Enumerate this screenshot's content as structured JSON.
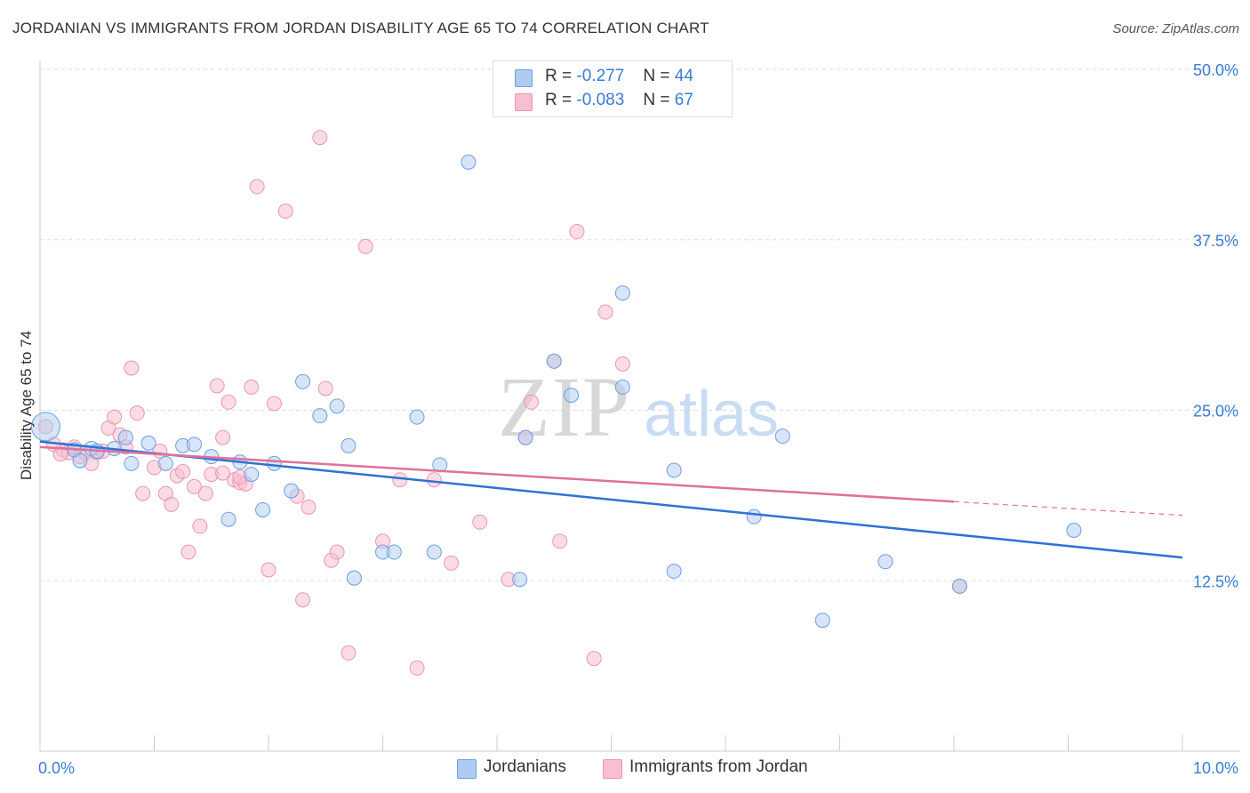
{
  "title": "JORDANIAN VS IMMIGRANTS FROM JORDAN DISABILITY AGE 65 TO 74 CORRELATION CHART",
  "source": "Source: ZipAtlas.com",
  "watermark": {
    "zip": "ZIP",
    "atlas": "atlas"
  },
  "legend": {
    "row1": {
      "r_label": "R =",
      "r_value": "-0.277",
      "n_label": "N =",
      "n_value": "44"
    },
    "row2": {
      "r_label": "R =",
      "r_value": "-0.083",
      "n_label": "N =",
      "n_value": "67"
    }
  },
  "bottom_legend": {
    "series1": "Jordanians",
    "series2": "Immigrants from Jordan"
  },
  "colors": {
    "blue_fill": "#aecbf2",
    "blue_stroke": "#6d9ee0",
    "blue_line": "#2f72d4",
    "pink_fill": "#f7bfd0",
    "pink_stroke": "#ec94b3",
    "pink_line": "#e0709a",
    "axis_text": "#3a7bd5",
    "grid": "#dddddd"
  },
  "chart_data": {
    "type": "scatter",
    "title": "JORDANIAN VS IMMIGRANTS FROM JORDAN DISABILITY AGE 65 TO 74 CORRELATION CHART",
    "xlabel": "",
    "ylabel": "Disability Age 65 to 74",
    "xlim": [
      0,
      10
    ],
    "ylim": [
      0,
      50
    ],
    "x_tick_labels": [
      "0.0%",
      "10.0%"
    ],
    "y_tick_labels": [
      "12.5%",
      "25.0%",
      "37.5%",
      "50.0%"
    ],
    "y_ticks": [
      12.5,
      25,
      37.5,
      50
    ],
    "grid": true,
    "legend_position": "top-center",
    "series": [
      {
        "name": "Jordanians",
        "R": -0.277,
        "N": 44,
        "trend": {
          "x": [
            0,
            10
          ],
          "y": [
            22.7,
            14.2
          ]
        },
        "points": [
          [
            0.05,
            23.8
          ],
          [
            0.3,
            22.1
          ],
          [
            0.35,
            21.3
          ],
          [
            0.45,
            22.2
          ],
          [
            0.5,
            22.0
          ],
          [
            0.65,
            22.2
          ],
          [
            0.75,
            23.0
          ],
          [
            0.8,
            21.1
          ],
          [
            0.95,
            22.6
          ],
          [
            1.1,
            21.1
          ],
          [
            1.25,
            22.4
          ],
          [
            1.35,
            22.5
          ],
          [
            1.5,
            21.6
          ],
          [
            1.65,
            17.0
          ],
          [
            1.75,
            21.2
          ],
          [
            1.85,
            20.3
          ],
          [
            1.95,
            17.7
          ],
          [
            2.05,
            21.1
          ],
          [
            2.2,
            19.1
          ],
          [
            2.3,
            27.1
          ],
          [
            2.45,
            24.6
          ],
          [
            2.6,
            25.3
          ],
          [
            2.7,
            22.4
          ],
          [
            2.75,
            12.7
          ],
          [
            3.0,
            14.6
          ],
          [
            3.1,
            14.6
          ],
          [
            3.3,
            24.5
          ],
          [
            3.45,
            14.6
          ],
          [
            3.5,
            21.0
          ],
          [
            3.75,
            43.2
          ],
          [
            4.2,
            12.6
          ],
          [
            4.25,
            23.0
          ],
          [
            4.5,
            28.6
          ],
          [
            4.65,
            26.1
          ],
          [
            5.1,
            33.6
          ],
          [
            5.1,
            26.7
          ],
          [
            5.55,
            20.6
          ],
          [
            5.55,
            13.2
          ],
          [
            6.25,
            17.2
          ],
          [
            6.5,
            23.1
          ],
          [
            6.85,
            9.6
          ],
          [
            7.4,
            13.9
          ],
          [
            8.05,
            12.1
          ],
          [
            9.05,
            16.2
          ]
        ]
      },
      {
        "name": "Immigrants from Jordan",
        "R": -0.083,
        "N": 67,
        "trend": {
          "x": [
            0,
            8
          ],
          "y": [
            22.3,
            18.3
          ]
        },
        "trend_dashed": {
          "x": [
            8,
            10
          ],
          "y": [
            18.3,
            17.3
          ]
        },
        "points": [
          [
            0.05,
            23.8
          ],
          [
            0.2,
            22.1
          ],
          [
            0.25,
            21.9
          ],
          [
            0.3,
            22.3
          ],
          [
            0.35,
            21.6
          ],
          [
            0.4,
            21.9
          ],
          [
            0.45,
            21.1
          ],
          [
            0.5,
            21.9
          ],
          [
            0.55,
            22.0
          ],
          [
            0.6,
            23.7
          ],
          [
            0.65,
            24.5
          ],
          [
            0.7,
            23.2
          ],
          [
            0.75,
            22.3
          ],
          [
            0.8,
            28.1
          ],
          [
            0.85,
            24.8
          ],
          [
            0.9,
            18.9
          ],
          [
            1.0,
            20.8
          ],
          [
            1.05,
            22.0
          ],
          [
            1.1,
            18.9
          ],
          [
            1.15,
            18.1
          ],
          [
            1.2,
            20.2
          ],
          [
            1.25,
            20.5
          ],
          [
            1.3,
            14.6
          ],
          [
            1.35,
            19.4
          ],
          [
            1.4,
            16.5
          ],
          [
            1.45,
            18.9
          ],
          [
            1.5,
            20.3
          ],
          [
            1.55,
            26.8
          ],
          [
            1.6,
            23.0
          ],
          [
            1.65,
            25.6
          ],
          [
            1.7,
            19.9
          ],
          [
            1.75,
            19.7
          ],
          [
            1.8,
            19.6
          ],
          [
            1.85,
            26.7
          ],
          [
            1.9,
            41.4
          ],
          [
            2.0,
            13.3
          ],
          [
            2.05,
            25.5
          ],
          [
            2.15,
            39.6
          ],
          [
            2.25,
            18.7
          ],
          [
            2.3,
            11.1
          ],
          [
            2.35,
            17.9
          ],
          [
            2.45,
            45.0
          ],
          [
            2.5,
            26.6
          ],
          [
            2.55,
            14.0
          ],
          [
            2.6,
            14.6
          ],
          [
            2.7,
            7.2
          ],
          [
            2.85,
            37.0
          ],
          [
            3.0,
            15.4
          ],
          [
            3.15,
            19.9
          ],
          [
            3.3,
            6.1
          ],
          [
            3.45,
            19.9
          ],
          [
            3.6,
            13.8
          ],
          [
            3.85,
            16.8
          ],
          [
            4.1,
            12.6
          ],
          [
            4.3,
            25.6
          ],
          [
            4.55,
            15.4
          ],
          [
            4.7,
            38.1
          ],
          [
            4.85,
            6.8
          ],
          [
            4.95,
            32.2
          ],
          [
            5.1,
            28.4
          ],
          [
            4.5,
            28.6
          ],
          [
            4.25,
            23.0
          ],
          [
            8.05,
            12.1
          ],
          [
            0.12,
            22.5
          ],
          [
            0.18,
            21.8
          ],
          [
            1.75,
            20.1
          ],
          [
            1.6,
            20.4
          ]
        ]
      }
    ]
  }
}
